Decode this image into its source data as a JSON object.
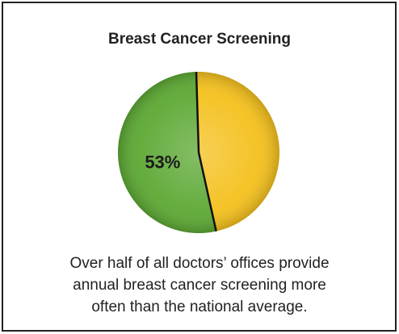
{
  "chart_data": {
    "type": "pie",
    "title": "Breast Cancer Screening",
    "values": [
      53,
      47
    ],
    "value_labels": [
      "53%",
      null
    ],
    "colors": [
      "#5ca833",
      "#f4c01c"
    ],
    "caption": [
      "Over half of all doctors’ offices provide",
      "annual breast cancer screening more",
      "often than the national average."
    ]
  }
}
